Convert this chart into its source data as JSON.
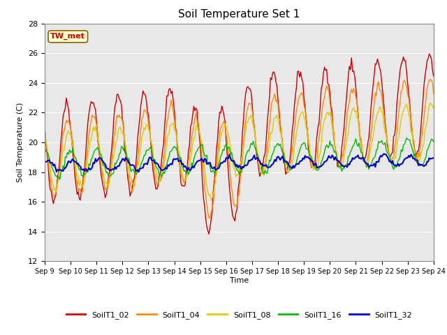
{
  "title": "Soil Temperature Set 1",
  "ylabel": "Soil Temperature (C)",
  "xlabel": "Time",
  "ylim": [
    12,
    28
  ],
  "xlim": [
    0,
    360
  ],
  "background_color": "#e8e8e8",
  "fig_color": "#ffffff",
  "annotation_text": "TW_met",
  "annotation_bg": "#ffffcc",
  "annotation_border": "#cc0000",
  "series": {
    "SoilT1_02": {
      "color": "#cc0000",
      "lw": 1.0
    },
    "SoilT1_04": {
      "color": "#ff8c00",
      "lw": 1.0
    },
    "SoilT1_08": {
      "color": "#ddcc00",
      "lw": 1.0
    },
    "SoilT1_16": {
      "color": "#00bb00",
      "lw": 1.0
    },
    "SoilT1_32": {
      "color": "#0000cc",
      "lw": 1.5
    }
  },
  "xtick_labels": [
    "Sep 9",
    "Sep 10",
    "Sep 11",
    "Sep 12",
    "Sep 13",
    "Sep 14",
    "Sep 15",
    "Sep 16",
    "Sep 17",
    "Sep 18",
    "Sep 19",
    "Sep 20",
    "Sep 21",
    "Sep 22",
    "Sep 23",
    "Sep 24"
  ],
  "xtick_positions": [
    0,
    24,
    48,
    72,
    96,
    120,
    144,
    168,
    192,
    216,
    240,
    264,
    288,
    312,
    336,
    360
  ],
  "ytick_labels": [
    "12",
    "14",
    "16",
    "18",
    "20",
    "22",
    "24",
    "26",
    "28"
  ],
  "ytick_values": [
    12,
    14,
    16,
    18,
    20,
    22,
    24,
    26,
    28
  ],
  "figsize": [
    6.4,
    4.8
  ],
  "dpi": 100
}
